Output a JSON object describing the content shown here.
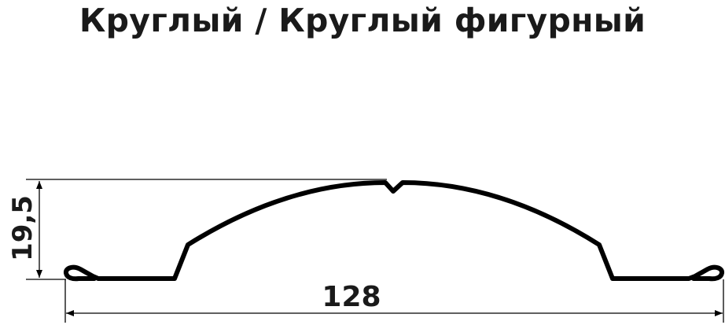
{
  "title": "Круглый / Круглый фигурный",
  "dimensions": {
    "height": "19,5",
    "width": "128"
  },
  "colors": {
    "line": "#000000",
    "text": "#1a1a1a"
  }
}
